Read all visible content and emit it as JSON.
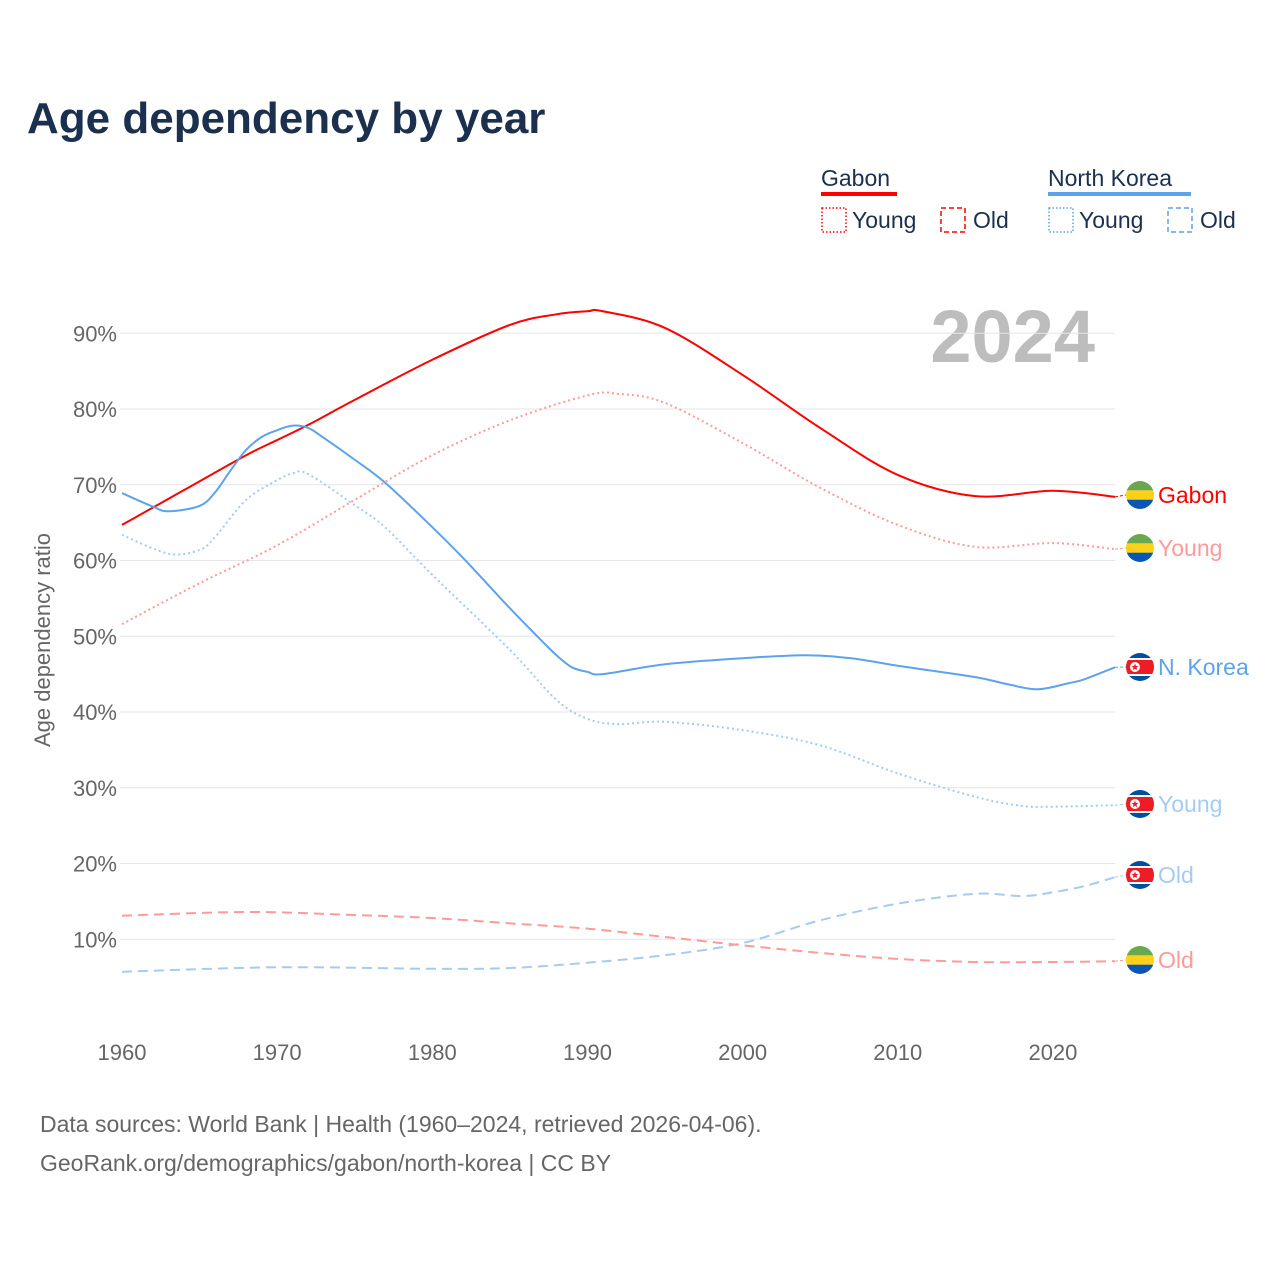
{
  "chart_data": {
    "type": "line",
    "title": "Age dependency by year",
    "ylabel": "Age dependency ratio",
    "xlabel": "",
    "year_watermark": "2024",
    "xlim": [
      1960,
      2024
    ],
    "ylim": [
      0,
      95
    ],
    "x_ticks": [
      "1960",
      "1970",
      "1980",
      "1990",
      "2000",
      "2010",
      "2020"
    ],
    "y_ticks": [
      "10%",
      "20%",
      "30%",
      "40%",
      "50%",
      "60%",
      "70%",
      "80%",
      "90%"
    ],
    "legend": {
      "placement": "top-right",
      "groups": [
        {
          "name": "Gabon",
          "color": "#ff0000",
          "young_label": "Young",
          "old_label": "Old"
        },
        {
          "name": "North Korea",
          "color": "#5ea3ea",
          "young_label": "Young",
          "old_label": "Old"
        }
      ]
    },
    "series": [
      {
        "name": "Gabon",
        "end_label": "Gabon",
        "country": "gabon",
        "style": "solid",
        "color": "#ff0000",
        "x": [
          1960,
          1964,
          1968,
          1970,
          1972,
          1975,
          1980,
          1985,
          1988,
          1990,
          1991,
          1995,
          2000,
          2005,
          2010,
          2015,
          2020,
          2024
        ],
        "y": [
          64.7,
          69.3,
          73.9,
          75.9,
          77.9,
          81.2,
          86.5,
          91.1,
          92.5,
          92.9,
          92.9,
          90.7,
          84.5,
          77.5,
          71.3,
          68.5,
          69.2,
          68.4
        ]
      },
      {
        "name": "Gabon Young",
        "end_label": "Young",
        "country": "gabon",
        "style": "dotted",
        "color": "#ff9a9a",
        "x": [
          1960,
          1965,
          1970,
          1975,
          1980,
          1985,
          1990,
          1992,
          1995,
          2000,
          2005,
          2010,
          2015,
          2020,
          2024
        ],
        "y": [
          51.6,
          57.0,
          62.0,
          68.0,
          73.9,
          78.5,
          81.8,
          82.0,
          80.8,
          75.5,
          69.6,
          64.7,
          61.8,
          62.3,
          61.5
        ]
      },
      {
        "name": "Gabon Old",
        "end_label": "Old",
        "country": "gabon",
        "style": "dashed",
        "color": "#ff9a9a",
        "x": [
          1960,
          1968,
          1975,
          1980,
          1985,
          1990,
          1995,
          2000,
          2005,
          2010,
          2015,
          2020,
          2024
        ],
        "y": [
          13.1,
          13.6,
          13.2,
          12.8,
          12.1,
          11.4,
          10.3,
          9.2,
          8.2,
          7.4,
          7.0,
          7.0,
          7.1
        ]
      },
      {
        "name": "North Korea",
        "end_label": "N. Korea",
        "country": "nk",
        "style": "solid",
        "color": "#5ea3ea",
        "x": [
          1960,
          1962,
          1963,
          1965,
          1966,
          1967,
          1968,
          1969,
          1970,
          1971,
          1972,
          1973,
          1975,
          1977,
          1980,
          1982,
          1985,
          1987,
          1988,
          1989,
          1990,
          1991,
          1995,
          2000,
          2004,
          2007,
          2010,
          2015,
          2017,
          2019,
          2021,
          2022,
          2024
        ],
        "y": [
          68.9,
          67.1,
          66.5,
          67.2,
          69.0,
          71.9,
          74.6,
          76.3,
          77.2,
          77.8,
          77.5,
          76.2,
          73.3,
          70.2,
          64.4,
          60.3,
          53.7,
          49.5,
          47.5,
          45.9,
          45.3,
          45.0,
          46.3,
          47.1,
          47.5,
          47.1,
          46.1,
          44.6,
          43.7,
          43.0,
          43.8,
          44.3,
          45.9
        ]
      },
      {
        "name": "North Korea Young",
        "end_label": "Young",
        "country": "nk",
        "style": "dotted",
        "color": "#a6cbf2",
        "x": [
          1960,
          1963,
          1965,
          1966,
          1968,
          1970,
          1971,
          1972,
          1975,
          1977,
          1980,
          1985,
          1988,
          1990,
          1992,
          1995,
          2000,
          2005,
          2010,
          2015,
          2018,
          2020,
          2024
        ],
        "y": [
          63.4,
          60.9,
          61.4,
          63.1,
          68.0,
          70.6,
          71.5,
          71.4,
          67.3,
          64.3,
          58.1,
          48.2,
          41.6,
          39.1,
          38.4,
          38.7,
          37.6,
          35.6,
          31.9,
          28.8,
          27.6,
          27.5,
          27.7
        ]
      },
      {
        "name": "North Korea Old",
        "end_label": "Old",
        "country": "nk",
        "style": "dashed",
        "color": "#a6cbf2",
        "x": [
          1960,
          1970,
          1980,
          1985,
          1990,
          1995,
          2000,
          2005,
          2010,
          2015,
          2018,
          2020,
          2022,
          2024
        ],
        "y": [
          5.7,
          6.3,
          6.1,
          6.2,
          6.9,
          7.9,
          9.5,
          12.5,
          14.7,
          16.0,
          15.7,
          16.2,
          17.0,
          18.2
        ]
      }
    ]
  },
  "footer": {
    "source_line": "Data sources: World Bank | Health (1960–2024, retrieved 2026-04-06).",
    "credit_line": "GeoRank.org/demographics/gabon/north-korea | CC BY"
  }
}
